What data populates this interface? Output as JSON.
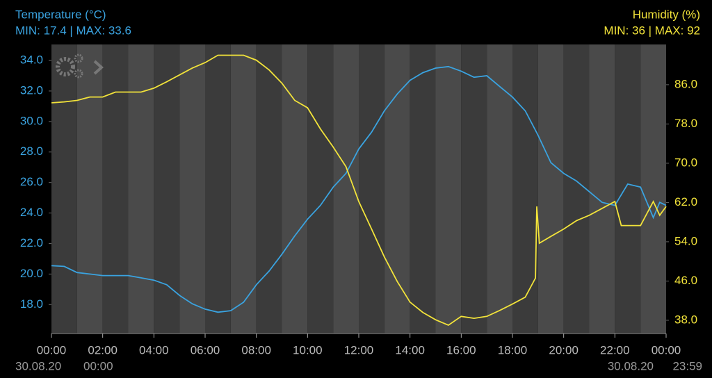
{
  "chart_data": {
    "type": "line",
    "series": [
      {
        "name": "Temperature (°C)",
        "stats": "MIN: 17.4 | MAX: 33.6",
        "color": "#3aa3e0",
        "axis": "y",
        "x": [
          0,
          0.5,
          1,
          1.5,
          2,
          2.5,
          3,
          3.5,
          4,
          4.5,
          5,
          5.5,
          6,
          6.5,
          7,
          7.5,
          8,
          8.5,
          9,
          9.5,
          10,
          10.5,
          11,
          11.5,
          12,
          12.5,
          13,
          13.5,
          14,
          14.5,
          15,
          15.5,
          16,
          16.5,
          17,
          17.5,
          18,
          18.5,
          19,
          19.5,
          20,
          20.5,
          21,
          21.5,
          22,
          22.5,
          23,
          23.5,
          23.75,
          24
        ],
        "values": [
          20.55,
          20.5,
          20.1,
          20.0,
          19.9,
          19.9,
          19.9,
          19.75,
          19.6,
          19.3,
          18.6,
          18.05,
          17.7,
          17.5,
          17.6,
          18.15,
          19.3,
          20.2,
          21.3,
          22.5,
          23.6,
          24.5,
          25.7,
          26.6,
          28.2,
          29.3,
          30.7,
          31.8,
          32.7,
          33.2,
          33.5,
          33.6,
          33.3,
          32.9,
          33.0,
          32.3,
          31.6,
          30.7,
          29.1,
          27.3,
          26.6,
          26.1,
          25.4,
          24.7,
          24.5,
          25.9,
          25.7,
          23.7,
          24.7,
          24.5
        ]
      },
      {
        "name": "Humidity (%)",
        "stats": "MIN: 36 | MAX: 92",
        "color": "#f2e33a",
        "axis": "y2",
        "x": [
          0,
          0.5,
          1,
          1.5,
          2,
          2.5,
          3,
          3.5,
          4,
          4.5,
          5,
          5.5,
          6,
          6.5,
          7,
          7.5,
          8,
          8.5,
          9,
          9.5,
          10,
          10.5,
          11,
          11.5,
          12,
          12.5,
          13,
          13.5,
          14,
          14.5,
          15,
          15.5,
          16,
          16.5,
          17,
          17.5,
          18,
          18.5,
          18.9,
          18.95,
          19.05,
          19.5,
          20,
          20.5,
          21,
          21.5,
          22,
          22.25,
          23,
          23.5,
          23.75,
          24
        ],
        "values": [
          82.3,
          82.5,
          82.8,
          83.5,
          83.5,
          84.5,
          84.5,
          84.5,
          85.3,
          86.6,
          88,
          89.4,
          90.5,
          92,
          92,
          92,
          91,
          89,
          86.3,
          82.8,
          81.3,
          77,
          73.3,
          69.3,
          62.2,
          56.6,
          50.9,
          45.9,
          41.7,
          39.6,
          38.1,
          37,
          38.8,
          38.4,
          38.8,
          40,
          41.3,
          42.7,
          46.6,
          61.2,
          53.7,
          55.1,
          56.6,
          58.3,
          59.4,
          60.8,
          62.2,
          57.3,
          57.3,
          62.2,
          59.4,
          61.2
        ]
      }
    ],
    "xlim": [
      0,
      24
    ],
    "xticks": [
      {
        "value": 0,
        "label": "00:00"
      },
      {
        "value": 2,
        "label": "02:00"
      },
      {
        "value": 4,
        "label": "04:00"
      },
      {
        "value": 6,
        "label": "06:00"
      },
      {
        "value": 8,
        "label": "08:00"
      },
      {
        "value": 10,
        "label": "10:00"
      },
      {
        "value": 12,
        "label": "12:00"
      },
      {
        "value": 14,
        "label": "14:00"
      },
      {
        "value": 16,
        "label": "16:00"
      },
      {
        "value": 18,
        "label": "18:00"
      },
      {
        "value": 20,
        "label": "20:00"
      },
      {
        "value": 22,
        "label": "22:00"
      },
      {
        "value": 24,
        "label": "00:00"
      }
    ],
    "range_start": [
      "30.08.20",
      "00:00"
    ],
    "range_end": [
      "30.08.20",
      "23:59"
    ],
    "ylim": [
      16.1,
      35.05
    ],
    "yticks": [
      {
        "value": 18,
        "label": "18.0"
      },
      {
        "value": 20,
        "label": "20.0"
      },
      {
        "value": 22,
        "label": "22.0"
      },
      {
        "value": 24,
        "label": "24.0"
      },
      {
        "value": 26,
        "label": "26.0"
      },
      {
        "value": 28,
        "label": "28.0"
      },
      {
        "value": 30,
        "label": "30.0"
      },
      {
        "value": 32,
        "label": "32.0"
      },
      {
        "value": 34,
        "label": "34.0"
      }
    ],
    "y2lim": [
      35.3,
      94.2
    ],
    "y2ticks": [
      {
        "value": 38,
        "label": "38.0"
      },
      {
        "value": 46,
        "label": "46.0"
      },
      {
        "value": 54,
        "label": "54.0"
      },
      {
        "value": 62,
        "label": "62.0"
      },
      {
        "value": 70,
        "label": "70.0"
      },
      {
        "value": 78,
        "label": "78.0"
      },
      {
        "value": 86,
        "label": "86.0"
      }
    ]
  }
}
